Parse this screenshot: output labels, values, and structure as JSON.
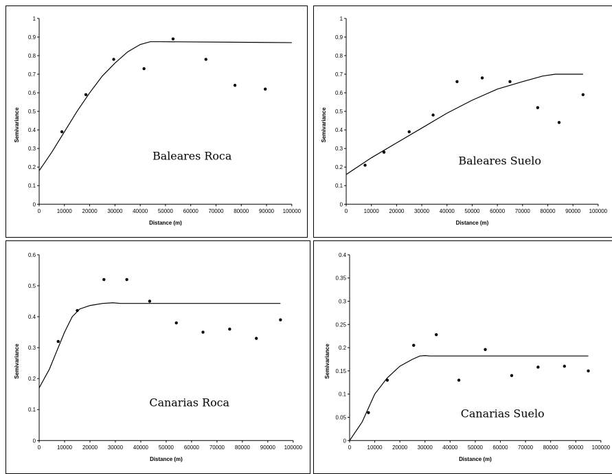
{
  "chart_data": [
    {
      "type": "scatter",
      "title": "Baleares Roca",
      "xlabel": "Distance (m)",
      "ylabel": "Semivariance",
      "xlim": [
        0,
        100000
      ],
      "ylim": [
        0,
        1
      ],
      "xticks": [
        0,
        10000,
        20000,
        30000,
        40000,
        50000,
        60000,
        70000,
        80000,
        90000,
        100000
      ],
      "yticks": [
        0,
        0.1,
        0.2,
        0.3,
        0.4,
        0.5,
        0.6,
        0.7,
        0.8,
        0.9,
        1
      ],
      "ytick_labels": [
        "0",
        "0.1",
        "0.2",
        "0.3",
        "0.4",
        "0.5",
        "0.6",
        "0.7",
        "0.8",
        "0.9",
        "1"
      ],
      "grid": false,
      "points": [
        [
          9000,
          0.39
        ],
        [
          18500,
          0.59
        ],
        [
          29500,
          0.78
        ],
        [
          41500,
          0.73
        ],
        [
          53000,
          0.89
        ],
        [
          66000,
          0.78
        ],
        [
          77500,
          0.64
        ],
        [
          89500,
          0.62
        ]
      ],
      "model_curve": [
        [
          0,
          0.18
        ],
        [
          5000,
          0.28
        ],
        [
          10000,
          0.39
        ],
        [
          15000,
          0.5
        ],
        [
          20000,
          0.6
        ],
        [
          25000,
          0.69
        ],
        [
          30000,
          0.76
        ],
        [
          35000,
          0.82
        ],
        [
          40000,
          0.86
        ],
        [
          44000,
          0.875
        ],
        [
          48000,
          0.875
        ],
        [
          100000,
          0.87
        ]
      ]
    },
    {
      "type": "scatter",
      "title": "Baleares Suelo",
      "xlabel": "Distance (m)",
      "ylabel": "Semivariance",
      "xlim": [
        0,
        100000
      ],
      "ylim": [
        0,
        1
      ],
      "xticks": [
        0,
        10000,
        20000,
        30000,
        40000,
        50000,
        60000,
        70000,
        80000,
        90000,
        100000
      ],
      "yticks": [
        0,
        0.1,
        0.2,
        0.3,
        0.4,
        0.5,
        0.6,
        0.7,
        0.8,
        0.9,
        1
      ],
      "ytick_labels": [
        "0",
        "0.1",
        "0.2",
        "0.3",
        "0.4",
        "0.5",
        "0.6",
        "0.7",
        "0.8",
        "0.9",
        "1"
      ],
      "grid": false,
      "points": [
        [
          7500,
          0.21
        ],
        [
          15000,
          0.28
        ],
        [
          25000,
          0.39
        ],
        [
          34500,
          0.48
        ],
        [
          44000,
          0.66
        ],
        [
          54000,
          0.68
        ],
        [
          65000,
          0.66
        ],
        [
          76000,
          0.52
        ],
        [
          84500,
          0.44
        ],
        [
          94000,
          0.59
        ]
      ],
      "model_curve": [
        [
          0,
          0.16
        ],
        [
          10000,
          0.25
        ],
        [
          20000,
          0.33
        ],
        [
          30000,
          0.41
        ],
        [
          40000,
          0.49
        ],
        [
          50000,
          0.56
        ],
        [
          60000,
          0.62
        ],
        [
          70000,
          0.66
        ],
        [
          78000,
          0.69
        ],
        [
          83000,
          0.7
        ],
        [
          94000,
          0.7
        ]
      ]
    },
    {
      "type": "scatter",
      "title": "Canarias Roca",
      "xlabel": "Distance (m)",
      "ylabel": "Semivariance",
      "xlim": [
        0,
        100000
      ],
      "ylim": [
        0,
        0.6
      ],
      "xticks": [
        0,
        10000,
        20000,
        30000,
        40000,
        50000,
        60000,
        70000,
        80000,
        90000,
        100000
      ],
      "yticks": [
        0,
        0.1,
        0.2,
        0.3,
        0.4,
        0.5,
        0.6
      ],
      "ytick_labels": [
        "0",
        "0.1",
        "0.2",
        "0.3",
        "0.4",
        "0.5",
        "0.6"
      ],
      "grid": false,
      "points": [
        [
          7500,
          0.32
        ],
        [
          15000,
          0.42
        ],
        [
          25500,
          0.52
        ],
        [
          34500,
          0.52
        ],
        [
          43500,
          0.45
        ],
        [
          54000,
          0.38
        ],
        [
          64500,
          0.35
        ],
        [
          75000,
          0.36
        ],
        [
          85500,
          0.33
        ],
        [
          95000,
          0.39
        ]
      ],
      "model_curve": [
        [
          0,
          0.17
        ],
        [
          4000,
          0.23
        ],
        [
          7000,
          0.29
        ],
        [
          10000,
          0.35
        ],
        [
          13000,
          0.4
        ],
        [
          16000,
          0.425
        ],
        [
          20000,
          0.436
        ],
        [
          25000,
          0.443
        ],
        [
          29000,
          0.445
        ],
        [
          32000,
          0.443
        ],
        [
          95000,
          0.443
        ]
      ]
    },
    {
      "type": "scatter",
      "title": "Canarias Suelo",
      "xlabel": "Distance (m)",
      "ylabel": "Semivariance",
      "xlim": [
        0,
        100000
      ],
      "ylim": [
        0,
        0.4
      ],
      "xticks": [
        0,
        10000,
        20000,
        30000,
        40000,
        50000,
        60000,
        70000,
        80000,
        90000,
        100000
      ],
      "yticks": [
        0,
        0.05,
        0.1,
        0.15,
        0.2,
        0.25,
        0.3,
        0.35,
        0.4
      ],
      "ytick_labels": [
        "0",
        "0.05",
        "0.1",
        "0.15",
        "0.2",
        "0.25",
        "0.3",
        "0.35",
        "0.4"
      ],
      "grid": false,
      "points": [
        [
          7500,
          0.06
        ],
        [
          15000,
          0.13
        ],
        [
          25500,
          0.205
        ],
        [
          34500,
          0.228
        ],
        [
          43500,
          0.13
        ],
        [
          54000,
          0.196
        ],
        [
          64500,
          0.14
        ],
        [
          75000,
          0.158
        ],
        [
          85500,
          0.16
        ],
        [
          95000,
          0.15
        ]
      ],
      "model_curve": [
        [
          0,
          0
        ],
        [
          5000,
          0.04
        ],
        [
          10000,
          0.1
        ],
        [
          15000,
          0.135
        ],
        [
          20000,
          0.16
        ],
        [
          25000,
          0.175
        ],
        [
          28000,
          0.182
        ],
        [
          30000,
          0.183
        ],
        [
          32000,
          0.182
        ],
        [
          95000,
          0.182
        ]
      ]
    }
  ]
}
